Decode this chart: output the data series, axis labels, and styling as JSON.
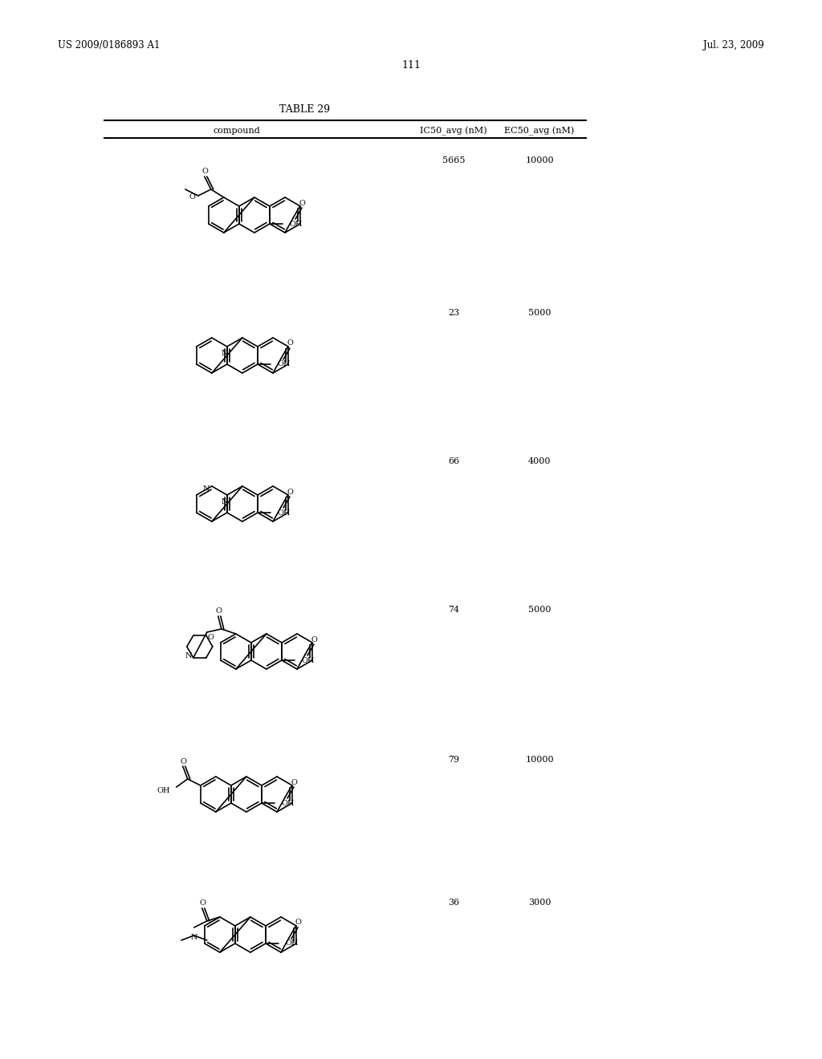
{
  "page_number": "111",
  "patent_left": "US 2009/0186893 A1",
  "patent_right": "Jul. 23, 2009",
  "table_title": "TABLE 29",
  "col_headers": [
    "compound",
    "IC50_avg (nM)",
    "EC50_avg (nM)"
  ],
  "rows": [
    {
      "ic50": "5665",
      "ec50": "10000"
    },
    {
      "ic50": "23",
      "ec50": "5000"
    },
    {
      "ic50": "66",
      "ec50": "4000"
    },
    {
      "ic50": "74",
      "ec50": "5000"
    },
    {
      "ic50": "79",
      "ec50": "10000"
    },
    {
      "ic50": "36",
      "ec50": "3000"
    }
  ],
  "bg_color": "#ffffff",
  "text_color": "#000000",
  "line_color": "#000000"
}
